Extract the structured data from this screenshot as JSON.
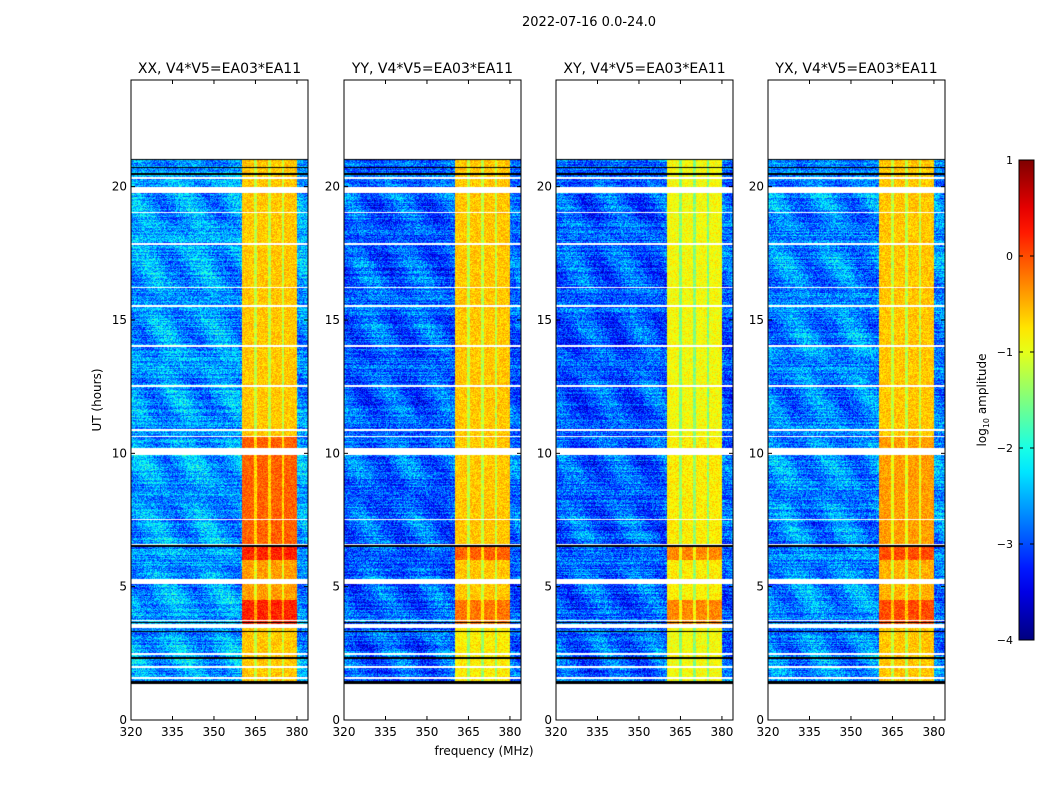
{
  "chart_data": {
    "type": "heatmap",
    "suptitle": "2022-07-16 0.0-24.0",
    "xlabel": "frequency (MHz)",
    "ylabel": "UT (hours)",
    "xlim": [
      320,
      384
    ],
    "ylim": [
      0,
      24
    ],
    "xticks": [
      "320",
      "335",
      "350",
      "365",
      "380"
    ],
    "xtick_values": [
      320,
      335,
      350,
      365,
      380
    ],
    "yticks": [
      "0",
      "5",
      "10",
      "15",
      "20"
    ],
    "ytick_values": [
      0,
      5,
      10,
      15,
      20
    ],
    "data_time_range": [
      1.35,
      21.05
    ],
    "flagged_gaps_hours": [
      [
        1.55,
        1.62
      ],
      [
        1.95,
        2.02
      ],
      [
        2.45,
        2.5
      ],
      [
        3.45,
        3.6
      ],
      [
        3.7,
        3.75
      ],
      [
        5.1,
        5.3
      ],
      [
        6.55,
        6.6
      ],
      [
        7.5,
        7.55
      ],
      [
        9.95,
        10.2
      ],
      [
        10.6,
        10.65
      ],
      [
        10.85,
        10.9
      ],
      [
        12.5,
        12.55
      ],
      [
        14.0,
        14.05
      ],
      [
        15.5,
        15.55
      ],
      [
        16.2,
        16.25
      ],
      [
        17.8,
        17.9
      ],
      [
        19.0,
        19.05
      ],
      [
        19.75,
        20.0
      ],
      [
        20.3,
        20.35
      ]
    ],
    "dark_rows_hours": [
      [
        1.35,
        1.45
      ],
      [
        2.3,
        2.35
      ],
      [
        3.3,
        3.35
      ],
      [
        3.62,
        3.68
      ],
      [
        6.5,
        6.55
      ],
      [
        20.45,
        20.5
      ],
      [
        20.7,
        20.75
      ],
      [
        21.0,
        21.05
      ]
    ],
    "rfi_band_mhz": [
      360,
      380
    ],
    "rfi_channel_gaps_mhz": [
      365,
      370,
      375
    ],
    "panels": [
      {
        "title": "XX, V4*V5=EA03*EA11",
        "background_log_amp": -2.6,
        "band_segments": [
          {
            "hours": [
              1.35,
              3.6
            ],
            "log_amp": -0.6
          },
          {
            "hours": [
              3.6,
              4.5
            ],
            "log_amp": 0.2
          },
          {
            "hours": [
              4.5,
              6.0
            ],
            "log_amp": -0.4
          },
          {
            "hours": [
              6.0,
              6.6
            ],
            "log_amp": 0.2
          },
          {
            "hours": [
              6.6,
              10.6
            ],
            "log_amp": -0.1
          },
          {
            "hours": [
              10.6,
              21.05
            ],
            "log_amp": -0.6
          }
        ]
      },
      {
        "title": "YY, V4*V5=EA03*EA11",
        "background_log_amp": -2.9,
        "band_segments": [
          {
            "hours": [
              1.35,
              3.6
            ],
            "log_amp": -0.8
          },
          {
            "hours": [
              3.6,
              4.5
            ],
            "log_amp": -0.2
          },
          {
            "hours": [
              4.5,
              6.0
            ],
            "log_amp": -0.6
          },
          {
            "hours": [
              6.0,
              6.6
            ],
            "log_amp": -0.1
          },
          {
            "hours": [
              6.6,
              10.6
            ],
            "log_amp": -0.6
          },
          {
            "hours": [
              10.6,
              21.05
            ],
            "log_amp": -0.6
          }
        ]
      },
      {
        "title": "XY, V4*V5=EA03*EA11",
        "background_log_amp": -2.9,
        "band_segments": [
          {
            "hours": [
              1.35,
              3.6
            ],
            "log_amp": -0.9
          },
          {
            "hours": [
              3.6,
              4.5
            ],
            "log_amp": -0.3
          },
          {
            "hours": [
              4.5,
              6.0
            ],
            "log_amp": -0.8
          },
          {
            "hours": [
              6.0,
              6.6
            ],
            "log_amp": -0.3
          },
          {
            "hours": [
              6.6,
              10.6
            ],
            "log_amp": -0.8
          },
          {
            "hours": [
              10.6,
              21.05
            ],
            "log_amp": -0.9
          }
        ]
      },
      {
        "title": "YX, V4*V5=EA03*EA11",
        "background_log_amp": -2.7,
        "band_segments": [
          {
            "hours": [
              1.35,
              3.6
            ],
            "log_amp": -0.6
          },
          {
            "hours": [
              3.6,
              4.5
            ],
            "log_amp": 0.0
          },
          {
            "hours": [
              4.5,
              6.0
            ],
            "log_amp": -0.5
          },
          {
            "hours": [
              6.0,
              6.6
            ],
            "log_amp": 0.0
          },
          {
            "hours": [
              6.6,
              10.6
            ],
            "log_amp": -0.4
          },
          {
            "hours": [
              10.6,
              21.05
            ],
            "log_amp": -0.6
          }
        ]
      }
    ],
    "colorbar": {
      "label_prefix": "log",
      "label_sub": "10",
      "label_suffix": " amplitude",
      "range": [
        -4,
        1
      ],
      "ticks": [
        "1",
        "0",
        "−1",
        "−2",
        "−3",
        "−4"
      ],
      "tick_values": [
        1,
        0,
        -1,
        -2,
        -3,
        -4
      ],
      "colormap": "jet"
    }
  }
}
